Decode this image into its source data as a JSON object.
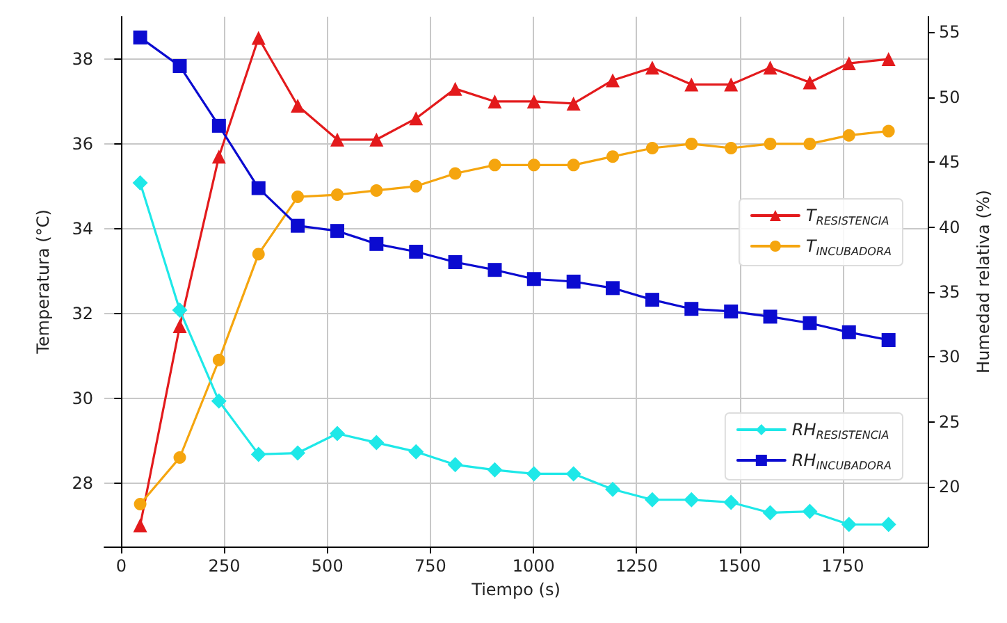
{
  "chart_data": {
    "type": "line",
    "xlabel": "Tiempo (s)",
    "ylabel": "Temperatura (°C)",
    "y2label": "Humedad relativa (%)",
    "x": [
      46,
      142,
      237,
      333,
      428,
      524,
      619,
      715,
      810,
      906,
      1001,
      1097,
      1192,
      1288,
      1383,
      1479,
      1574,
      1670,
      1765,
      1861
    ],
    "series": [
      {
        "name": "T$_{RESISTENCIA}$",
        "color": "#e31a1c",
        "marker": "triangle",
        "values": [
          27.0,
          31.7,
          35.7,
          38.5,
          36.9,
          36.1,
          36.1,
          36.6,
          37.3,
          37.0,
          37.0,
          36.95,
          37.5,
          37.8,
          37.4,
          37.4,
          37.8,
          37.45,
          37.9,
          38.0
        ]
      },
      {
        "name": "T$_{INCUBADORA}$",
        "color": "#f5a50e",
        "marker": "circle",
        "values": [
          27.5,
          28.6,
          30.9,
          33.4,
          34.75,
          34.8,
          34.9,
          35.0,
          35.3,
          35.5,
          35.5,
          35.5,
          35.7,
          35.9,
          36.0,
          35.9,
          36.0,
          36.0,
          36.2,
          36.3
        ]
      },
      {
        "name": "RH$_{RESISTENCIA}$",
        "color": "#1ee8e8",
        "marker": "diamond",
        "axis": "y2",
        "values": [
          43.4,
          33.6,
          26.6,
          22.5,
          22.6,
          24.1,
          23.4,
          22.7,
          21.7,
          21.3,
          21.0,
          21.0,
          19.8,
          19.0,
          19.0,
          18.8,
          18.0,
          18.1,
          17.1,
          17.1
        ]
      },
      {
        "name": "RH$_{INCUBADORA}$",
        "color": "#0b0bd0",
        "marker": "square",
        "axis": "y2",
        "values": [
          54.6,
          52.4,
          47.8,
          43.0,
          40.1,
          39.7,
          38.7,
          38.1,
          37.3,
          36.7,
          36.0,
          35.8,
          35.3,
          34.4,
          33.7,
          33.5,
          33.1,
          32.6,
          31.9,
          31.3
        ]
      }
    ],
    "xlim": [
      -41,
      1956
    ],
    "xticks": [
      0,
      250,
      500,
      750,
      1000,
      1250,
      1500,
      1750
    ],
    "ylim": [
      26.5,
      39.0
    ],
    "yticks": [
      28,
      30,
      32,
      34,
      36,
      38
    ],
    "y2lim": [
      15.4,
      56.2
    ],
    "y2ticks": [
      20,
      25,
      30,
      35,
      40,
      45,
      50,
      55
    ],
    "grid": true,
    "legend": "right",
    "line_style": "solid"
  }
}
